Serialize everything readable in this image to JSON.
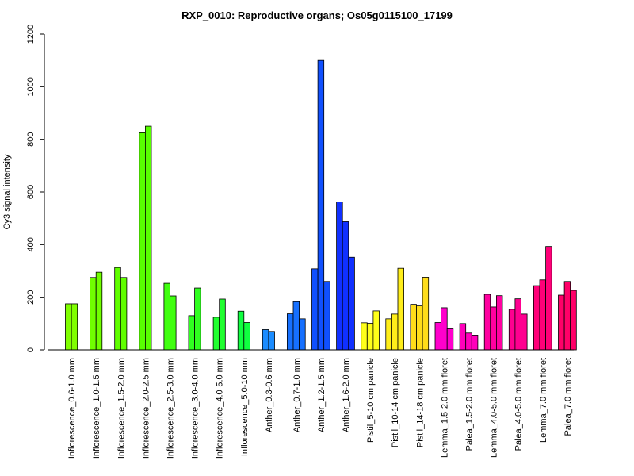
{
  "chart_data": {
    "type": "bar",
    "title": "RXP_0010: Reproductive organs; Os05g0115100_17199",
    "xlabel": "",
    "ylabel": "Cy3 signal intensity",
    "ylim": [
      0,
      1200
    ],
    "yticks": [
      0,
      200,
      400,
      600,
      800,
      1000,
      1200
    ],
    "grid": false,
    "groups": [
      {
        "label": "Inflorescence_0.6-1.0 mm",
        "color": "#80ff00",
        "values": [
          175,
          175
        ]
      },
      {
        "label": "Inflorescence_1.0-1.5 mm",
        "color": "#70ff00",
        "values": [
          275,
          295
        ]
      },
      {
        "label": "Inflorescence_1.5-2.0 mm",
        "color": "#60ff00",
        "values": [
          313,
          275
        ]
      },
      {
        "label": "Inflorescence_2.0-2.5 mm",
        "color": "#58ff00",
        "values": [
          825,
          850
        ]
      },
      {
        "label": "Inflorescence_2.5-3.0 mm",
        "color": "#40ff10",
        "values": [
          253,
          205
        ]
      },
      {
        "label": "Inflorescence_3.0-4.0 mm",
        "color": "#30ff20",
        "values": [
          130,
          235
        ]
      },
      {
        "label": "Inflorescence_4.0-5.0 mm",
        "color": "#20ff30",
        "values": [
          124,
          193
        ]
      },
      {
        "label": "Inflorescence_5.0-10 mm",
        "color": "#10ff40",
        "values": [
          147,
          104
        ]
      },
      {
        "label": "Anther_0.3-0.6 mm",
        "color": "#1a8cff",
        "values": [
          77,
          70
        ]
      },
      {
        "label": "Anther_0.7-1.0 mm",
        "color": "#1670ff",
        "values": [
          137,
          183,
          118
        ]
      },
      {
        "label": "Anther_1.2-1.5 mm",
        "color": "#1050ff",
        "values": [
          308,
          1100,
          260
        ]
      },
      {
        "label": "Anther_1.6-2.0 mm",
        "color": "#1030ff",
        "values": [
          562,
          487,
          352
        ]
      },
      {
        "label": "Pistil_5-10 cm panicle",
        "color": "#ffff1a",
        "values": [
          103,
          101,
          148
        ]
      },
      {
        "label": "Pistil_10-14 cm panicle",
        "color": "#ffee1a",
        "values": [
          118,
          136,
          310
        ]
      },
      {
        "label": "Pistil_14-18 cm panicle",
        "color": "#ffdd1a",
        "values": [
          173,
          167,
          276
        ]
      },
      {
        "label": "Lemma_1.5-2.0 mm floret",
        "color": "#ff00cc",
        "values": [
          104,
          160,
          80
        ]
      },
      {
        "label": "Palea_1.5-2.0 mm floret",
        "color": "#ff00bb",
        "values": [
          100,
          64,
          56
        ]
      },
      {
        "label": "Lemma_4.0-5.0 mm floret",
        "color": "#ff00a0",
        "values": [
          211,
          163,
          206
        ]
      },
      {
        "label": "Palea_4.0-5.0 mm floret",
        "color": "#ff0090",
        "values": [
          154,
          194,
          136
        ]
      },
      {
        "label": "Lemma_7.0 mm floret",
        "color": "#ff0078",
        "values": [
          244,
          266,
          393
        ]
      },
      {
        "label": "Palea_7.0 mm floret",
        "color": "#ff0068",
        "values": [
          208,
          260,
          226
        ]
      }
    ]
  }
}
